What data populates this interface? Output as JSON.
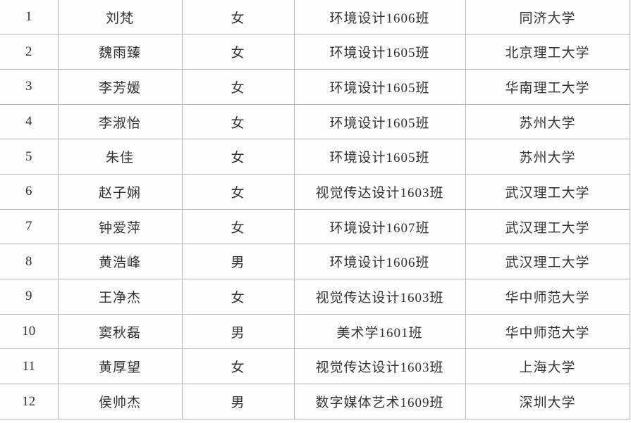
{
  "table": {
    "description_rows_count": 12,
    "rows": [
      {
        "no": "1",
        "name": "刘梵",
        "gender": "女",
        "class": "环境设计1606班",
        "university": "同济大学"
      },
      {
        "no": "2",
        "name": "魏雨臻",
        "gender": "女",
        "class": "环境设计1605班",
        "university": "北京理工大学"
      },
      {
        "no": "3",
        "name": "李芳媛",
        "gender": "女",
        "class": "环境设计1605班",
        "university": "华南理工大学"
      },
      {
        "no": "4",
        "name": "李淑怡",
        "gender": "女",
        "class": "环境设计1605班",
        "university": "苏州大学"
      },
      {
        "no": "5",
        "name": "朱佳",
        "gender": "女",
        "class": "环境设计1605班",
        "university": "苏州大学"
      },
      {
        "no": "6",
        "name": "赵子娴",
        "gender": "女",
        "class": "视觉传达设计1603班",
        "university": "武汉理工大学"
      },
      {
        "no": "7",
        "name": "钟爱萍",
        "gender": "女",
        "class": "环境设计1607班",
        "university": "武汉理工大学"
      },
      {
        "no": "8",
        "name": "黄浩峰",
        "gender": "男",
        "class": "环境设计1606班",
        "university": "武汉理工大学"
      },
      {
        "no": "9",
        "name": "王净杰",
        "gender": "女",
        "class": "视觉传达设计1603班",
        "university": "华中师范大学"
      },
      {
        "no": "10",
        "name": "窦秋磊",
        "gender": "男",
        "class": "美术学1601班",
        "university": "华中师范大学"
      },
      {
        "no": "11",
        "name": "黄厚望",
        "gender": "女",
        "class": "视觉传达设计1603班",
        "university": "上海大学"
      },
      {
        "no": "12",
        "name": "侯帅杰",
        "gender": "男",
        "class": "数字媒体艺术1609班",
        "university": "深圳大学"
      }
    ]
  },
  "colors": {
    "grid_line": "#b5b5b5",
    "text": "#333333",
    "background": "#fdfdfd"
  }
}
